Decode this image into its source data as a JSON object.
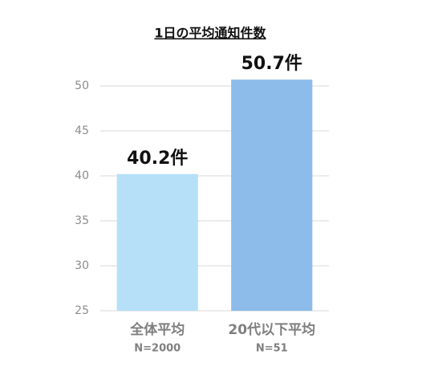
{
  "chart_data": {
    "type": "bar",
    "title": "1日の平均通知件数",
    "categories": [
      "全体平均",
      "20代以下平均"
    ],
    "sample_sizes": [
      "N=2000",
      "N=51"
    ],
    "values": [
      40.2,
      50.7
    ],
    "value_labels": [
      "40.2件",
      "50.7件"
    ],
    "colors": [
      "#b5e0f8",
      "#8dbbea"
    ],
    "ylim": [
      25,
      50
    ],
    "yticks": [
      25,
      30,
      35,
      40,
      45,
      50
    ],
    "grid": true
  }
}
